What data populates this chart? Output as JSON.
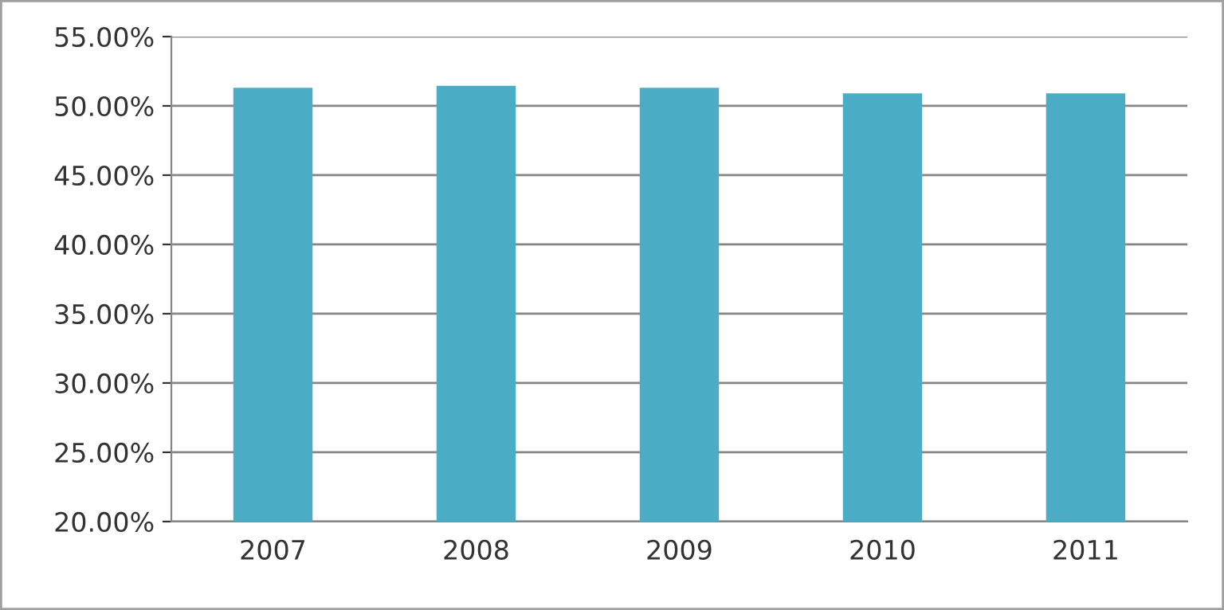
{
  "chart_data": {
    "type": "bar",
    "categories": [
      "2007",
      "2008",
      "2009",
      "2010",
      "2011"
    ],
    "values": [
      51.3,
      51.45,
      51.3,
      50.9,
      50.9
    ],
    "color": "#4bacc6",
    "ylim": [
      20,
      55
    ],
    "yticks": [
      {
        "value": 20,
        "label": "20.00%"
      },
      {
        "value": 25,
        "label": "25.00%"
      },
      {
        "value": 30,
        "label": "30.00%"
      },
      {
        "value": 35,
        "label": "35.00%"
      },
      {
        "value": 40,
        "label": "40.00%"
      },
      {
        "value": 45,
        "label": "45.00%"
      },
      {
        "value": 50,
        "label": "50.00%"
      },
      {
        "value": 55,
        "label": "55.00%"
      }
    ],
    "grid": "y"
  }
}
